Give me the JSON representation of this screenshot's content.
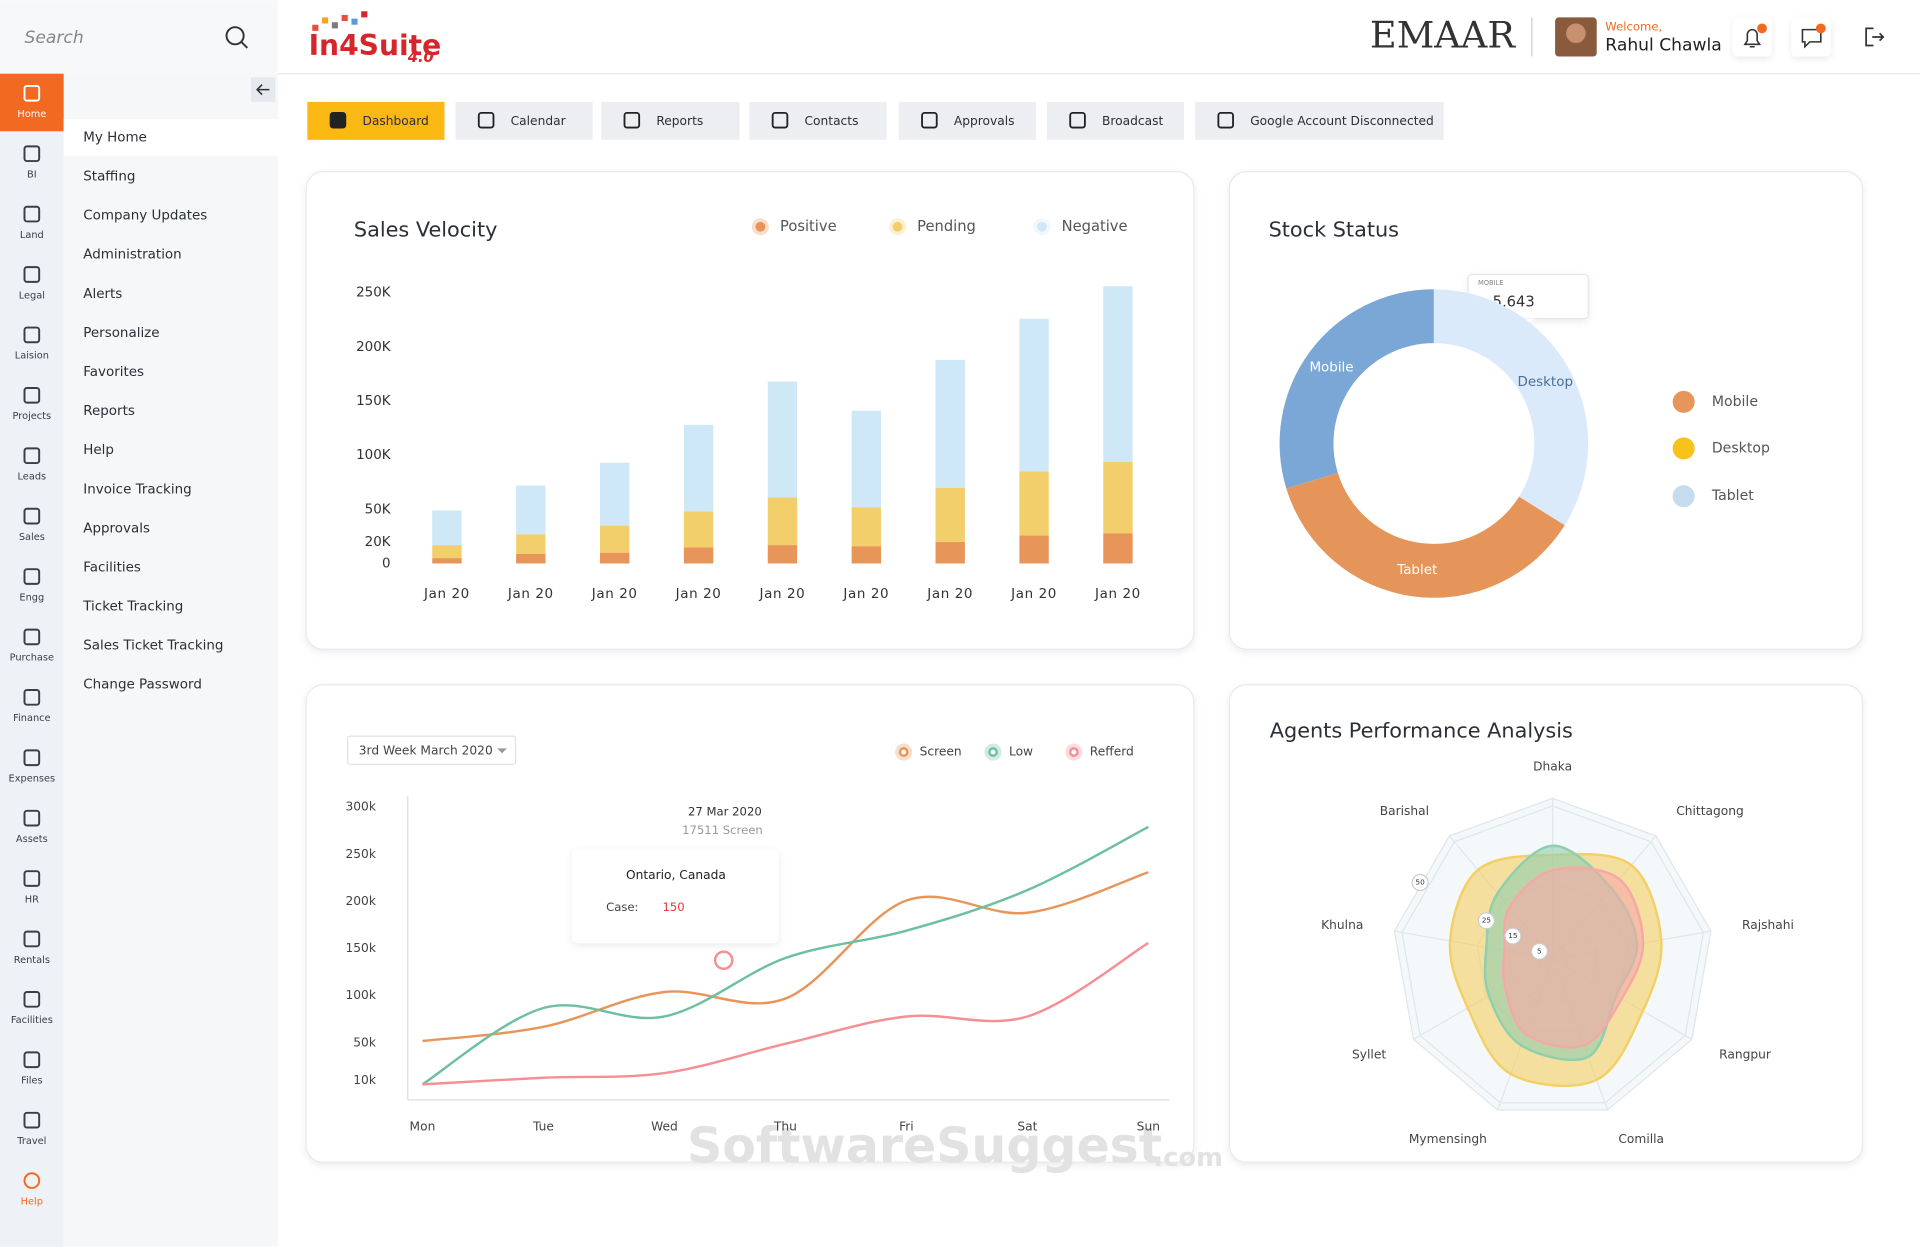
{
  "search_placeholder": "Search",
  "logo": {
    "name": "In4Suite",
    "version": "4.0"
  },
  "company": "EMAAR",
  "user": {
    "greeting": "Welcome,",
    "name": "Rahul Chawla"
  },
  "nav_rail": [
    "Home",
    "BI",
    "Land",
    "Legal",
    "Laision",
    "Projects",
    "Leads",
    "Sales",
    "Engg",
    "Purchase",
    "Finance",
    "Expenses",
    "Assets",
    "HR",
    "Rentals",
    "Facilities",
    "Files",
    "Travel",
    "Help"
  ],
  "menu": [
    "My Home",
    "Staffing",
    "Company Updates",
    "Administration",
    "Alerts",
    "Personalize",
    "Favorites",
    "Reports",
    "Help",
    "Invoice Tracking",
    "Approvals",
    "Facilities",
    "Ticket Tracking",
    "Sales Ticket Tracking",
    "Change Password"
  ],
  "tabs": [
    "Dashboard",
    "Calendar",
    "Reports",
    "Contacts",
    "Approvals",
    "Broadcast",
    "Google Account Disconnected"
  ],
  "watermark": {
    "brand": "SoftwareSuggest",
    "suffix": ".com"
  },
  "chart_data": [
    {
      "type": "bar",
      "stacked": true,
      "title": "Sales Velocity",
      "categories": [
        "Jan 20",
        "Jan 20",
        "Jan 20",
        "Jan 20",
        "Jan 20",
        "Jan 20",
        "Jan 20",
        "Jan 20",
        "Jan 20"
      ],
      "series": [
        {
          "name": "Positive",
          "color": "#e8955a",
          "values": [
            5000,
            9000,
            10000,
            15000,
            17000,
            16000,
            20000,
            26000,
            28000
          ]
        },
        {
          "name": "Pending",
          "color": "#f3cf6b",
          "values": [
            12000,
            18000,
            25000,
            33000,
            44000,
            36000,
            50000,
            59000,
            66000
          ]
        },
        {
          "name": "Negative",
          "color": "#cfe8f8",
          "values": [
            32000,
            45000,
            58000,
            80000,
            107000,
            89000,
            118000,
            141000,
            162000
          ]
        }
      ],
      "ylim": [
        0,
        260000
      ],
      "yticks": [
        {
          "value": 250000,
          "label": "250K"
        },
        {
          "value": 200000,
          "label": "200K"
        },
        {
          "value": 150000,
          "label": "150K"
        },
        {
          "value": 100000,
          "label": "100K"
        },
        {
          "value": 50000,
          "label": "50K"
        },
        {
          "value": 20000,
          "label": "20K"
        },
        0
      ],
      "grid": false
    },
    {
      "type": "donut",
      "title": "Stock Status",
      "categories": [
        "Mobile",
        "Desktop",
        "Tablet"
      ],
      "values": [
        5643,
        6434,
        6909
      ],
      "value_labels": [
        "5,643",
        null,
        null
      ],
      "colors": [
        "#7ba7d7",
        "#dbeafb",
        "#e5955a"
      ],
      "tooltip_title": "MOBILE",
      "legend": {
        "labels": [
          "Mobile",
          "Desktop",
          "Tablet"
        ],
        "colors": [
          "#e8955a",
          "#f7c21a",
          "#c5dcef"
        ]
      }
    },
    {
      "type": "line",
      "filter": "3rd Week March 2020",
      "x": [
        "Mon",
        "Tue",
        "Wed",
        "Thu",
        "Fri",
        "Sat",
        "Sun"
      ],
      "series": [
        {
          "name": "Screen",
          "color": "#e8955a",
          "values": [
            52000,
            67000,
            104000,
            97000,
            201000,
            188000,
            231000
          ]
        },
        {
          "name": "Low",
          "color": "#6dbfa0",
          "values": [
            6000,
            87000,
            78000,
            140000,
            169000,
            212000,
            279000
          ]
        },
        {
          "name": "Refferd",
          "color": "#f48f95",
          "values": [
            6000,
            13000,
            18000,
            49000,
            78000,
            78000,
            156000
          ]
        }
      ],
      "ylim": [
        0,
        300000
      ],
      "yticks": [
        {
          "value": 300000,
          "label": "300k"
        },
        {
          "value": 250000,
          "label": "250k"
        },
        {
          "value": 200000,
          "label": "200k"
        },
        {
          "value": 150000,
          "label": "150k"
        },
        {
          "value": 100000,
          "label": "100k"
        },
        {
          "value": 50000,
          "label": "50k"
        },
        {
          "value": 10000,
          "label": "10k"
        }
      ],
      "tooltips": [
        {
          "title": "27 Mar 2020",
          "text": "17511 Screen"
        },
        {
          "title": "Ontario, Canada",
          "label": "Case:",
          "value": 150
        }
      ]
    },
    {
      "type": "radar",
      "title": "Agents Performance Analysis",
      "categories": [
        "Dhaka",
        "Chittagong",
        "Rajshahi",
        "Rangpur",
        "Comilla",
        "Mymensingh",
        "Syllet",
        "Khulna",
        "Barishal"
      ],
      "series": [
        {
          "color": "#f4cf63",
          "values": [
            34,
            40,
            36,
            34,
            42,
            40,
            32,
            34,
            38
          ]
        },
        {
          "color": "#8fcfae",
          "values": [
            37,
            30,
            28,
            24,
            34,
            30,
            24,
            22,
            28
          ]
        },
        {
          "color": "#f6a8a8",
          "values": [
            29,
            34,
            30,
            26,
            30,
            26,
            18,
            16,
            22
          ]
        }
      ],
      "rlim": [
        0,
        50
      ],
      "rticks": [
        5,
        15,
        25,
        50
      ]
    }
  ]
}
